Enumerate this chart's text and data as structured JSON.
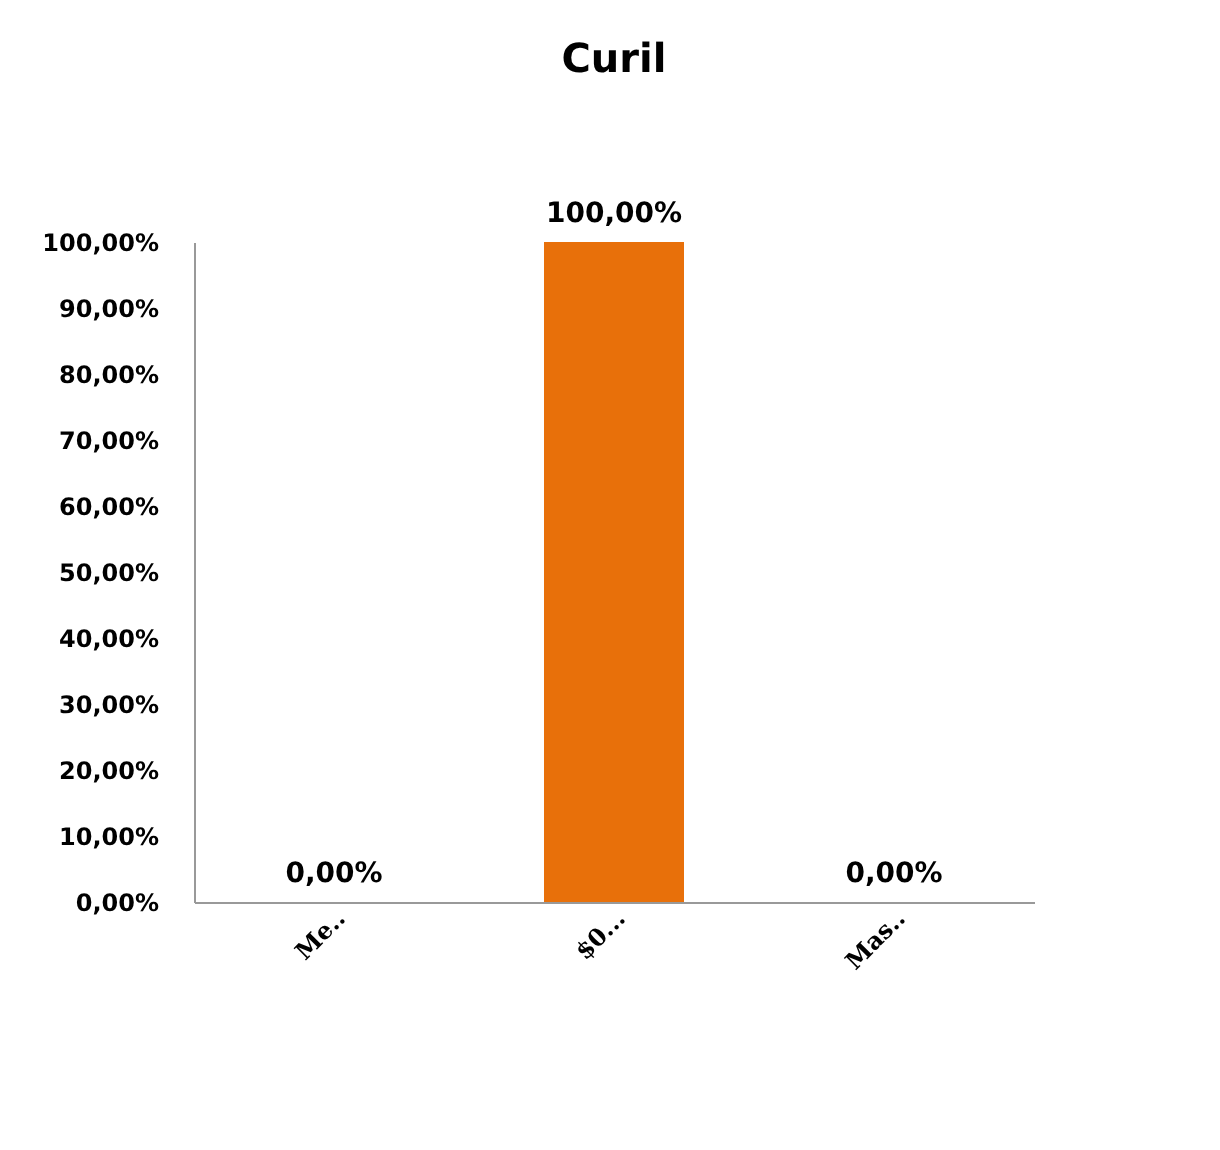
{
  "chart_data": {
    "type": "bar",
    "title": "Curil",
    "categories": [
      "Me..",
      "$0...",
      "Mas.."
    ],
    "values": [
      0,
      100,
      0
    ],
    "value_labels": [
      "0,00%",
      "100,00%",
      "0,00%"
    ],
    "color": "#e8700a",
    "ylim": [
      0,
      100
    ],
    "yticks": [
      {
        "value": 0,
        "label": "0,00%"
      },
      {
        "value": 10,
        "label": "10,00%"
      },
      {
        "value": 20,
        "label": "20,00%"
      },
      {
        "value": 30,
        "label": "30,00%"
      },
      {
        "value": 40,
        "label": "40,00%"
      },
      {
        "value": 50,
        "label": "50,00%"
      },
      {
        "value": 60,
        "label": "60,00%"
      },
      {
        "value": 70,
        "label": "70,00%"
      },
      {
        "value": 80,
        "label": "80,00%"
      },
      {
        "value": 90,
        "label": "90,00%"
      },
      {
        "value": 100,
        "label": "100,00%"
      }
    ],
    "grid": false
  }
}
